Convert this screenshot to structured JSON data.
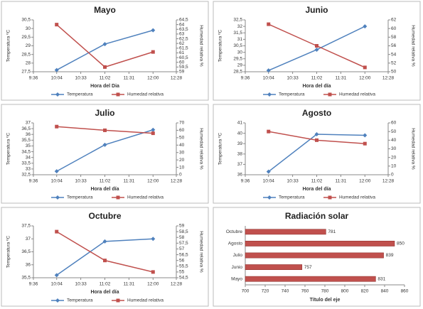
{
  "chart_data": [
    {
      "type": "line",
      "title": "Mayo",
      "x_label": "Hora del Dia",
      "y_label": "Temperatura ºC",
      "y2_label": "Humedad relativa %",
      "x": [
        "10:04",
        "11:02",
        "12:00"
      ],
      "xlim": [
        "9:36",
        "12:28"
      ],
      "xticks": [
        "9:36",
        "10:04",
        "10:33",
        "11:02",
        "11:31",
        "12:00",
        "12:28"
      ],
      "ylim": [
        27.5,
        30.5
      ],
      "yticks": [
        {
          "value": 27.5,
          "label": "27,5"
        },
        28,
        {
          "value": 28.5,
          "label": "28,5"
        },
        29,
        {
          "value": 29.5,
          "label": "29,5"
        },
        30,
        {
          "value": 30.5,
          "label": "30,5"
        }
      ],
      "y2lim": [
        59,
        64.5
      ],
      "y2ticks": [
        59,
        {
          "value": 59.5,
          "label": "59,5"
        },
        60,
        {
          "value": 60.5,
          "label": "60,5"
        },
        61,
        {
          "value": 61.5,
          "label": "61,5"
        },
        62,
        {
          "value": 62.5,
          "label": "62,5"
        },
        63,
        {
          "value": 63.5,
          "label": "63,5"
        },
        64,
        {
          "value": 64.5,
          "label": "64,5"
        }
      ],
      "series": [
        {
          "name": "Temperatura",
          "color": "#4f81bd",
          "marker": "diamond",
          "values": [
            27.6,
            29.1,
            29.9
          ]
        },
        {
          "name": "Humedad relativa",
          "color": "#c0504d",
          "marker": "square",
          "axis": "y2",
          "values": [
            64,
            59.5,
            61.1
          ]
        }
      ]
    },
    {
      "type": "line",
      "title": "Junio",
      "x_label": "Hora del día",
      "y_label": "Temperatura ºC",
      "y2_label": "Humedad relativa %",
      "x": [
        "10:04",
        "11:02",
        "12:00"
      ],
      "xlim": [
        "9:36",
        "12:28"
      ],
      "xticks": [
        "9:36",
        "10:04",
        "10:33",
        "11:02",
        "11:31",
        "12:00",
        "12:28"
      ],
      "ylim": [
        28.5,
        32.5
      ],
      "yticks": [
        {
          "value": 28.5,
          "label": "28,5"
        },
        29,
        {
          "value": 29.5,
          "label": "29,5"
        },
        30,
        {
          "value": 30.5,
          "label": "30,5"
        },
        31,
        {
          "value": 31.5,
          "label": "31,5"
        },
        32,
        {
          "value": 32.5,
          "label": "32,5"
        }
      ],
      "y2lim": [
        50,
        62
      ],
      "y2ticks": [
        50,
        52,
        54,
        56,
        58,
        60,
        62
      ],
      "series": [
        {
          "name": "Temperatura",
          "color": "#4f81bd",
          "marker": "diamond",
          "values": [
            28.6,
            30.2,
            32
          ]
        },
        {
          "name": "Humedad relativa",
          "color": "#c0504d",
          "marker": "square",
          "axis": "y2",
          "values": [
            61,
            56,
            51
          ]
        }
      ]
    },
    {
      "type": "line",
      "title": "Julio",
      "x_label": "Hora del día",
      "y_label": "Temperatura ºC",
      "y2_label": "Humedad relativa %",
      "x": [
        "10:04",
        "11:02",
        "12:00"
      ],
      "xlim": [
        "9:36",
        "12:28"
      ],
      "xticks": [
        "9:36",
        "10:04",
        "10:33",
        "11:02",
        "11:31",
        "12:00",
        "12:28"
      ],
      "ylim": [
        32.5,
        37
      ],
      "yticks": [
        {
          "value": 32.5,
          "label": "32,5"
        },
        33,
        {
          "value": 33.5,
          "label": "33,5"
        },
        34,
        {
          "value": 34.5,
          "label": "34,5"
        },
        35,
        {
          "value": 35.5,
          "label": "35,5"
        },
        36,
        {
          "value": 36.5,
          "label": "36,5"
        },
        37
      ],
      "y2lim": [
        0,
        70
      ],
      "y2ticks": [
        0,
        10,
        20,
        30,
        40,
        50,
        60,
        70
      ],
      "series": [
        {
          "name": "Temperatura",
          "color": "#4f81bd",
          "marker": "diamond",
          "values": [
            32.8,
            35.1,
            36.4
          ]
        },
        {
          "name": "Humedad relativa",
          "color": "#c0504d",
          "marker": "square",
          "axis": "y2",
          "values": [
            65,
            60,
            56
          ]
        }
      ]
    },
    {
      "type": "line",
      "title": "Agosto",
      "x_label": "Hora del día",
      "y_label": "Temperatura ºC",
      "y2_label": "Humedad relativa %",
      "x": [
        "10:04",
        "11:02",
        "12:00"
      ],
      "xlim": [
        "9:36",
        "12:28"
      ],
      "xticks": [
        "9:36",
        "10:04",
        "10:33",
        "11:02",
        "11:31",
        "12:00",
        "12:28"
      ],
      "ylim": [
        36,
        41
      ],
      "yticks": [
        36,
        37,
        38,
        39,
        40,
        41
      ],
      "y2lim": [
        0,
        60
      ],
      "y2ticks": [
        0,
        10,
        20,
        30,
        40,
        50,
        60
      ],
      "series": [
        {
          "name": "Temperatura",
          "color": "#4f81bd",
          "marker": "diamond",
          "values": [
            36.3,
            39.9,
            39.8
          ]
        },
        {
          "name": "Humedad relativa",
          "color": "#c0504d",
          "marker": "square",
          "axis": "y2",
          "values": [
            50,
            40,
            36
          ]
        }
      ]
    },
    {
      "type": "line",
      "title": "Octubre",
      "x_label": "Hora del día",
      "y_label": "Temperatura ºC",
      "y2_label": "Humedad relativa %",
      "x": [
        "10:04",
        "11:02",
        "12:00"
      ],
      "xlim": [
        "9:36",
        "12:28"
      ],
      "xticks": [
        "9:36",
        "10:04",
        "10:33",
        "11:02",
        "11:31",
        "12:00",
        "12:28"
      ],
      "ylim": [
        35.5,
        37.5
      ],
      "yticks": [
        {
          "value": 35.5,
          "label": "35,5"
        },
        36,
        {
          "value": 36.5,
          "label": "36,5"
        },
        37,
        {
          "value": 37.5,
          "label": "37,5"
        }
      ],
      "y2lim": [
        54.5,
        59
      ],
      "y2ticks": [
        {
          "value": 54.5,
          "label": "54,5"
        },
        55,
        {
          "value": 55.5,
          "label": "55,5"
        },
        56,
        {
          "value": 56.5,
          "label": "56,5"
        },
        57,
        {
          "value": 57.5,
          "label": "57,5"
        },
        58,
        {
          "value": 58.5,
          "label": "58,5"
        },
        59
      ],
      "series": [
        {
          "name": "Temperatura",
          "color": "#4f81bd",
          "marker": "diamond",
          "values": [
            35.6,
            36.9,
            37
          ]
        },
        {
          "name": "Humedad relativa",
          "color": "#c0504d",
          "marker": "square",
          "axis": "y2",
          "values": [
            58.5,
            56,
            55
          ]
        }
      ]
    },
    {
      "type": "bar",
      "orientation": "horizontal",
      "title": "Radiación solar",
      "x_label": "Título del eje",
      "color": "#c0504d",
      "categories": [
        "Mayo",
        "Junio",
        "Julio",
        "Agosto",
        "Octubre"
      ],
      "values": [
        831,
        757,
        839,
        850,
        781
      ],
      "xlim": [
        700,
        860
      ],
      "xticks": [
        700,
        720,
        740,
        760,
        780,
        800,
        820,
        840,
        860
      ]
    }
  ]
}
